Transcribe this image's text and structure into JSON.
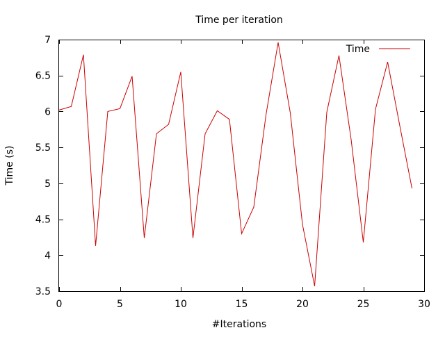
{
  "chart_data": {
    "type": "line",
    "title": "Time per iteration",
    "xlabel": "#Iterations",
    "ylabel": "Time (s)",
    "xlim": [
      0,
      30
    ],
    "ylim": [
      3.5,
      7
    ],
    "xticks": [
      0,
      5,
      10,
      15,
      20,
      25,
      30
    ],
    "xtick_labels": [
      "0",
      "5",
      "10",
      "15",
      "20",
      "25",
      "30"
    ],
    "yticks": [
      3.5,
      4,
      4.5,
      5,
      5.5,
      6,
      6.5,
      7
    ],
    "ytick_labels": [
      "3.5",
      "4",
      "4.5",
      "5",
      "5.5",
      "6",
      "6.5",
      "7"
    ],
    "grid": false,
    "legend_position": "top-right",
    "series": [
      {
        "name": "Time",
        "color": "#cc0000",
        "x": [
          0,
          1,
          2,
          3,
          4,
          5,
          6,
          7,
          8,
          9,
          10,
          11,
          12,
          13,
          14,
          15,
          16,
          17,
          18,
          19,
          20,
          21,
          22,
          23,
          24,
          25,
          26,
          27,
          28,
          29
        ],
        "values": [
          6.02,
          6.07,
          6.79,
          4.13,
          6.0,
          6.04,
          6.49,
          4.24,
          5.69,
          5.82,
          6.55,
          4.24,
          5.69,
          6.01,
          5.89,
          4.3,
          4.67,
          5.95,
          6.96,
          5.98,
          4.43,
          3.57,
          5.99,
          6.78,
          5.61,
          4.18,
          6.03,
          6.69,
          5.8,
          4.93
        ]
      }
    ]
  }
}
